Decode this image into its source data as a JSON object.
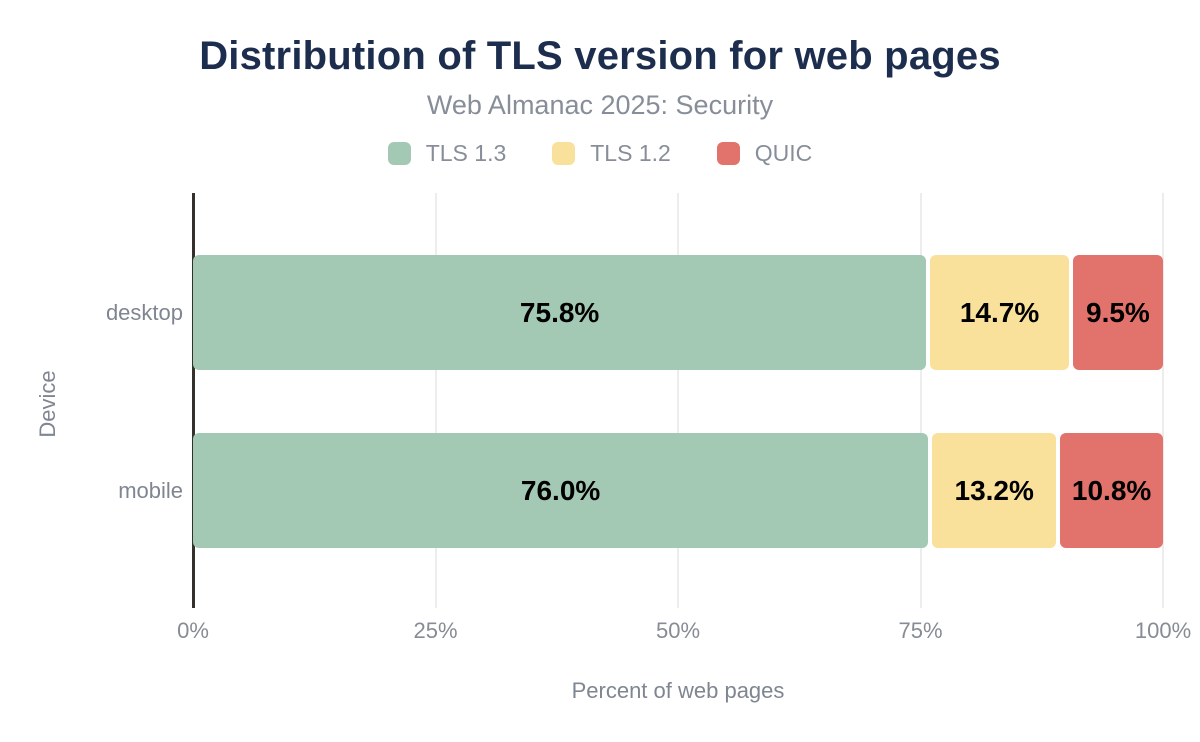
{
  "title": "Distribution of TLS version for web pages",
  "subtitle": "Web Almanac 2025: Security",
  "chart_data": {
    "type": "bar",
    "orientation": "horizontal",
    "stacked": true,
    "title": "Distribution of TLS version for web pages",
    "subtitle": "Web Almanac 2025: Security",
    "categories": [
      "desktop",
      "mobile"
    ],
    "series": [
      {
        "name": "TLS 1.3",
        "color": "#a3c8b3",
        "values": [
          75.8,
          76.0
        ]
      },
      {
        "name": "TLS 1.2",
        "color": "#f9e19b",
        "values": [
          14.7,
          13.2
        ]
      },
      {
        "name": "QUIC",
        "color": "#e2726c",
        "values": [
          9.5,
          10.8
        ]
      }
    ],
    "value_label_format": "one-decimal-percent",
    "xlabel": "Percent of web pages",
    "ylabel": "Device",
    "x_ticks": [
      "0%",
      "25%",
      "50%",
      "75%",
      "100%"
    ],
    "xlim": [
      0,
      100
    ],
    "grid": "vertical",
    "legend_position": "top"
  },
  "colors": {
    "title_text": "#1c2d4e",
    "muted_text": "#878e99",
    "axis_text": "#7f8691",
    "axis_line": "#34302c",
    "gridline": "#ededed",
    "bar_label": "#000000",
    "background": "#ffffff"
  }
}
